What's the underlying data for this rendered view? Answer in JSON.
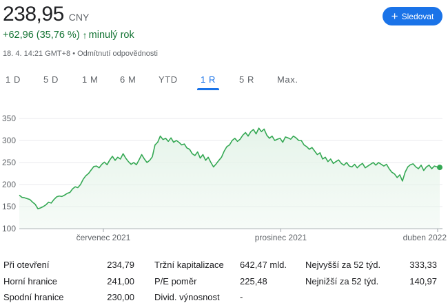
{
  "quote": {
    "price": "238,95",
    "currency": "CNY",
    "change": "+62,96 (35,76 %)",
    "period": "minulý rok",
    "timestamp": "18. 4. 14:21 GMT+8",
    "disclaimer_sep": "•",
    "disclaimer": "Odmítnutí odpovědnosti"
  },
  "follow_button": {
    "label": "Sledovat",
    "icon": "plus-icon"
  },
  "tabs": [
    {
      "label": "1 D",
      "active": false
    },
    {
      "label": "5 D",
      "active": false
    },
    {
      "label": "1 M",
      "active": false
    },
    {
      "label": "6 M",
      "active": false
    },
    {
      "label": "YTD",
      "active": false
    },
    {
      "label": "1 R",
      "active": true
    },
    {
      "label": "5 R",
      "active": false
    },
    {
      "label": "Max.",
      "active": false
    }
  ],
  "colors": {
    "accent": "#1a73e8",
    "positive": "#137333",
    "line": "#34a853",
    "area": "#e6f4ea"
  },
  "chart_data": {
    "type": "area",
    "title": "",
    "xlabel": "",
    "ylabel": "",
    "ylim": [
      100,
      350
    ],
    "yticks": [
      "350",
      "300",
      "250",
      "200",
      "150",
      "100"
    ],
    "xtick_labels": [
      "červenec 2021",
      "prosinec 2021",
      "duben 2022"
    ],
    "grid": true,
    "values": [
      176,
      171,
      170,
      168,
      166,
      160,
      155,
      145,
      147,
      150,
      154,
      160,
      158,
      166,
      172,
      174,
      173,
      176,
      180,
      182,
      190,
      195,
      193,
      200,
      212,
      220,
      225,
      233,
      241,
      242,
      238,
      246,
      251,
      245,
      256,
      264,
      255,
      262,
      258,
      270,
      260,
      252,
      246,
      250,
      245,
      256,
      268,
      258,
      250,
      255,
      263,
      290,
      296,
      310,
      302,
      305,
      298,
      306,
      296,
      300,
      296,
      290,
      292,
      283,
      280,
      270,
      266,
      274,
      260,
      268,
      255,
      262,
      250,
      240,
      247,
      255,
      262,
      276,
      286,
      290,
      300,
      305,
      298,
      303,
      312,
      318,
      310,
      320,
      325,
      315,
      328,
      320,
      326,
      312,
      305,
      310,
      300,
      303,
      305,
      296,
      308,
      306,
      303,
      310,
      306,
      300,
      300,
      290,
      286,
      280,
      284,
      276,
      268,
      272,
      258,
      262,
      252,
      258,
      248,
      252,
      256,
      248,
      244,
      250,
      242,
      240,
      246,
      238,
      244,
      248,
      238,
      242,
      246,
      250,
      244,
      250,
      246,
      242,
      246,
      236,
      228,
      224,
      216,
      222,
      208,
      228,
      240,
      245,
      247,
      240,
      236,
      244,
      232,
      240,
      244,
      236,
      242,
      240,
      238.95
    ],
    "last_value": 238.95
  },
  "stats": {
    "col1": [
      {
        "label": "Při otevření",
        "value": "234,79"
      },
      {
        "label": "Horní hranice",
        "value": "241,00"
      },
      {
        "label": "Spodní hranice",
        "value": "230,00"
      }
    ],
    "col2": [
      {
        "label": "Tržní kapitalizace",
        "value": "642,47 mld."
      },
      {
        "label": "P/E poměr",
        "value": "225,48"
      },
      {
        "label": "Divid. výnosnost",
        "value": "-"
      }
    ],
    "col3": [
      {
        "label": "Nejvyšší za 52 týd.",
        "value": "333,33"
      },
      {
        "label": "Nejnižší za 52 týd.",
        "value": "140,97"
      }
    ]
  }
}
